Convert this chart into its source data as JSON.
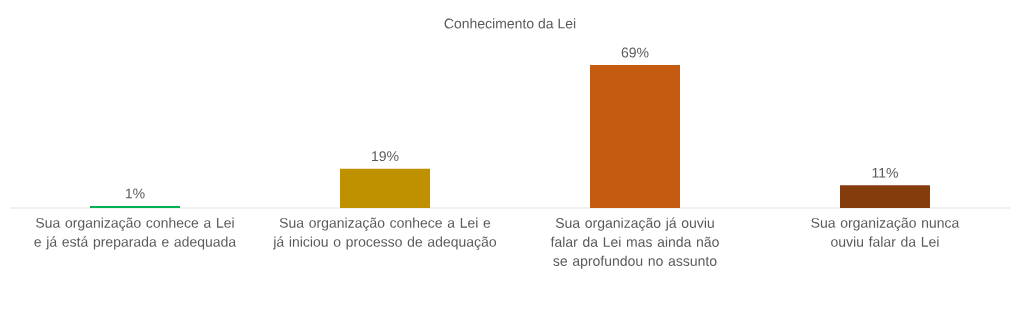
{
  "chart_data": {
    "type": "bar",
    "title": "Conhecimento da Lei",
    "categories": [
      "Sua organização conhece a Lei e já está preparada e adequada",
      "Sua organização conhece a Lei e já iniciou o processo de adequação",
      "Sua organização já ouviu falar da Lei mas ainda não se aprofundou no assunto",
      "Sua organização nunca ouviu falar da Lei"
    ],
    "values": [
      1,
      19,
      69,
      11
    ],
    "value_labels": [
      "1%",
      "19%",
      "69%",
      "11%"
    ],
    "colors": [
      "#00b050",
      "#bf9000",
      "#c55a11",
      "#843c0c"
    ]
  }
}
